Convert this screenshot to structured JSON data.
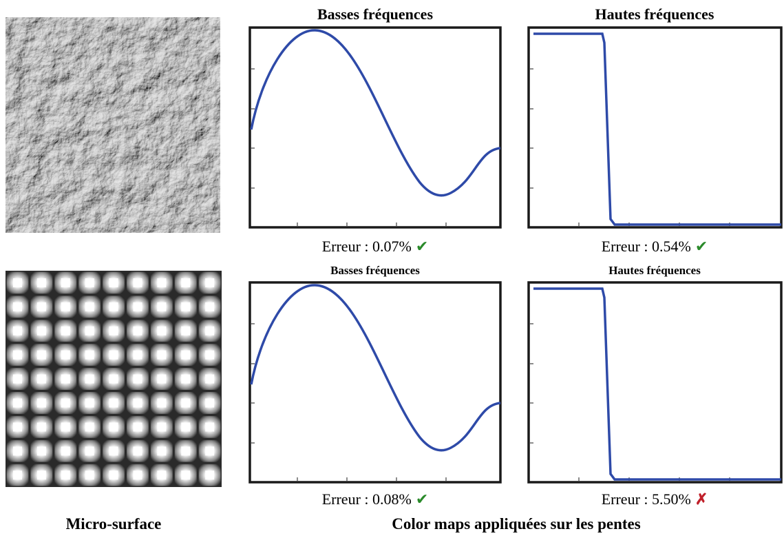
{
  "figure": {
    "panels": [
      {
        "title": "Basses fréquences",
        "error": "Erreur : 0.07%",
        "status": "✔"
      },
      {
        "title": "Hautes fréquences",
        "error": "Erreur : 0.54%",
        "status": "✔"
      },
      {
        "title": "Basses fréquences",
        "error": "Erreur : 0.08%",
        "status": "✔"
      },
      {
        "title": "Hautes fréquences",
        "error": "Erreur : 5.50%",
        "status": "✗"
      }
    ],
    "captions": {
      "left": "Micro-surface",
      "right": "Color maps appliquées sur les pentes"
    }
  }
}
